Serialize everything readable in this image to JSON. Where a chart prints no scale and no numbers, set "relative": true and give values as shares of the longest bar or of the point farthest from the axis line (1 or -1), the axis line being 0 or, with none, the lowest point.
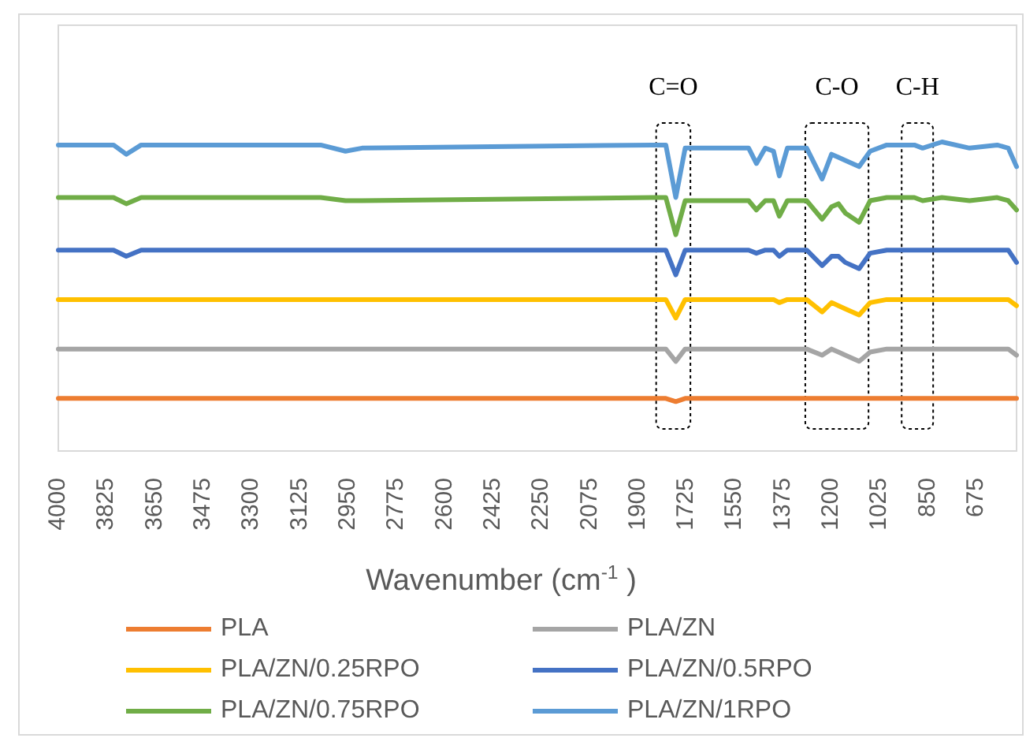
{
  "chart_data": {
    "type": "line",
    "relative": true,
    "xlabel": "Wavenumber (cm$^{-1}$ )",
    "x": [
      4000,
      3800,
      3754,
      3700,
      3050,
      2960,
      2900,
      1850,
      1800,
      1764,
      1730,
      1600,
      1500,
      1472,
      1440,
      1410,
      1389,
      1360,
      1290,
      1234,
      1200,
      1175,
      1150,
      1100,
      1060,
      1000,
      900,
      870,
      800,
      700,
      600,
      560,
      530
    ],
    "xlim": [
      4000,
      530
    ],
    "xticks": [
      4000,
      3825,
      3650,
      3475,
      3300,
      3125,
      2950,
      2775,
      2600,
      2425,
      2250,
      2075,
      1900,
      1725,
      1550,
      1375,
      1200,
      1025,
      850,
      675
    ],
    "grid": false,
    "legend": "bottom",
    "tick_labels": "x",
    "line_style": "solid",
    "marker": "none",
    "series": [
      {
        "name": "PLA",
        "color": "#ed7d31",
        "values": [
          0.17,
          0.17,
          0.17,
          0.17,
          0.17,
          0.17,
          0.17,
          0.17,
          0.17,
          0.16,
          0.17,
          0.17,
          0.17,
          0.17,
          0.17,
          0.17,
          0.17,
          0.17,
          0.17,
          0.17,
          0.17,
          0.17,
          0.17,
          0.17,
          0.17,
          0.17,
          0.17,
          0.17,
          0.17,
          0.17,
          0.17,
          0.17,
          0.17
        ]
      },
      {
        "name": "PLA/ZN",
        "color": "#a5a5a5",
        "values": [
          0.33,
          0.33,
          0.33,
          0.33,
          0.33,
          0.33,
          0.33,
          0.33,
          0.33,
          0.29,
          0.33,
          0.33,
          0.33,
          0.33,
          0.33,
          0.33,
          0.33,
          0.33,
          0.33,
          0.31,
          0.33,
          0.32,
          0.31,
          0.29,
          0.32,
          0.33,
          0.33,
          0.33,
          0.33,
          0.33,
          0.33,
          0.33,
          0.31
        ]
      },
      {
        "name": "PLA/ZN/0.25RPO",
        "color": "#ffc000",
        "values": [
          0.49,
          0.49,
          0.49,
          0.49,
          0.49,
          0.49,
          0.49,
          0.49,
          0.49,
          0.43,
          0.49,
          0.49,
          0.49,
          0.49,
          0.49,
          0.49,
          0.48,
          0.49,
          0.49,
          0.45,
          0.48,
          0.47,
          0.46,
          0.44,
          0.48,
          0.49,
          0.49,
          0.49,
          0.49,
          0.49,
          0.49,
          0.49,
          0.47
        ]
      },
      {
        "name": "PLA/ZN/0.5RPO",
        "color": "#4472c4",
        "values": [
          0.65,
          0.65,
          0.63,
          0.65,
          0.65,
          0.65,
          0.65,
          0.65,
          0.65,
          0.57,
          0.65,
          0.65,
          0.65,
          0.64,
          0.65,
          0.65,
          0.63,
          0.65,
          0.65,
          0.6,
          0.63,
          0.63,
          0.61,
          0.59,
          0.64,
          0.65,
          0.65,
          0.65,
          0.65,
          0.65,
          0.65,
          0.65,
          0.61
        ]
      },
      {
        "name": "PLA/ZN/0.75RPO",
        "color": "#70ad47",
        "values": [
          0.82,
          0.82,
          0.8,
          0.82,
          0.82,
          0.81,
          0.81,
          0.82,
          0.82,
          0.7,
          0.81,
          0.81,
          0.81,
          0.78,
          0.81,
          0.81,
          0.76,
          0.81,
          0.81,
          0.75,
          0.79,
          0.8,
          0.77,
          0.74,
          0.81,
          0.82,
          0.82,
          0.81,
          0.82,
          0.81,
          0.82,
          0.81,
          0.78
        ]
      },
      {
        "name": "PLA/ZN/1RPO",
        "color": "#5b9bd5",
        "values": [
          0.99,
          0.99,
          0.96,
          0.99,
          0.99,
          0.97,
          0.98,
          0.99,
          0.99,
          0.82,
          0.98,
          0.98,
          0.98,
          0.93,
          0.98,
          0.97,
          0.89,
          0.98,
          0.98,
          0.88,
          0.96,
          0.95,
          0.94,
          0.92,
          0.97,
          0.99,
          0.99,
          0.98,
          1,
          0.98,
          0.99,
          0.98,
          0.92
        ]
      }
    ],
    "bands": [
      {
        "axis": "x",
        "from": 1835,
        "to": 1711,
        "label": "C=O",
        "color": "#ffffff"
      },
      {
        "axis": "x",
        "from": 1295,
        "to": 1066,
        "label": "C-O",
        "color": "#ffffff"
      },
      {
        "axis": "x",
        "from": 946,
        "to": 832,
        "label": "C-H",
        "color": "#ffffff"
      }
    ]
  }
}
